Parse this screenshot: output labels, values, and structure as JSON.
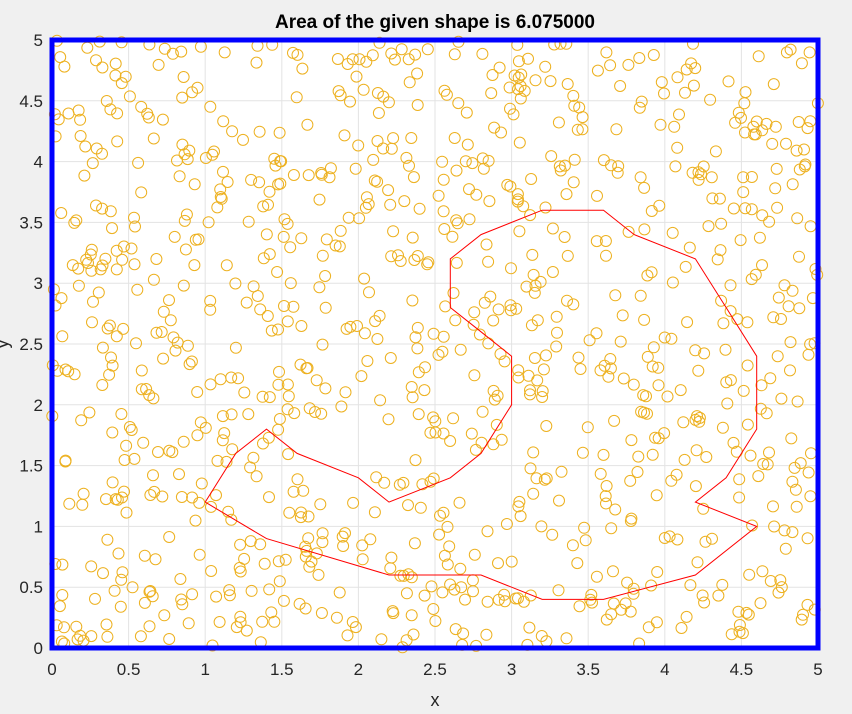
{
  "chart_data": {
    "type": "scatter",
    "title": "Area of the given shape is 6.075000",
    "xlabel": "x",
    "ylabel": "y",
    "xlim": [
      0,
      5
    ],
    "ylim": [
      0,
      5
    ],
    "xticks": [
      "0",
      "0.5",
      "1",
      "1.5",
      "2",
      "2.5",
      "3",
      "3.5",
      "4",
      "4.5",
      "5"
    ],
    "yticks": [
      "0",
      "0.5",
      "1",
      "1.5",
      "2",
      "2.5",
      "3",
      "3.5",
      "4",
      "4.5",
      "5"
    ],
    "grid": true,
    "scatter_color": "#EDB120",
    "polygon_color": "#FF0000",
    "boundary_color": "#0000FF",
    "scatter_point_count": 1000,
    "polygon": [
      [
        1.0,
        1.2
      ],
      [
        1.2,
        1.6
      ],
      [
        1.4,
        1.8
      ],
      [
        1.6,
        1.6
      ],
      [
        2.0,
        1.4
      ],
      [
        2.2,
        1.2
      ],
      [
        2.6,
        1.4
      ],
      [
        2.8,
        1.6
      ],
      [
        3.0,
        2.0
      ],
      [
        3.0,
        2.4
      ],
      [
        2.8,
        2.6
      ],
      [
        2.6,
        2.8
      ],
      [
        2.6,
        3.2
      ],
      [
        2.8,
        3.4
      ],
      [
        3.0,
        3.5
      ],
      [
        3.2,
        3.6
      ],
      [
        3.6,
        3.6
      ],
      [
        3.8,
        3.4
      ],
      [
        4.2,
        3.2
      ],
      [
        4.4,
        2.8
      ],
      [
        4.6,
        2.4
      ],
      [
        4.6,
        1.8
      ],
      [
        4.4,
        1.4
      ],
      [
        4.2,
        1.2
      ],
      [
        4.6,
        1.0
      ],
      [
        4.2,
        0.6
      ],
      [
        3.6,
        0.4
      ],
      [
        3.2,
        0.4
      ],
      [
        2.8,
        0.6
      ],
      [
        2.2,
        0.6
      ],
      [
        1.4,
        0.9
      ],
      [
        1.0,
        1.2
      ]
    ]
  }
}
